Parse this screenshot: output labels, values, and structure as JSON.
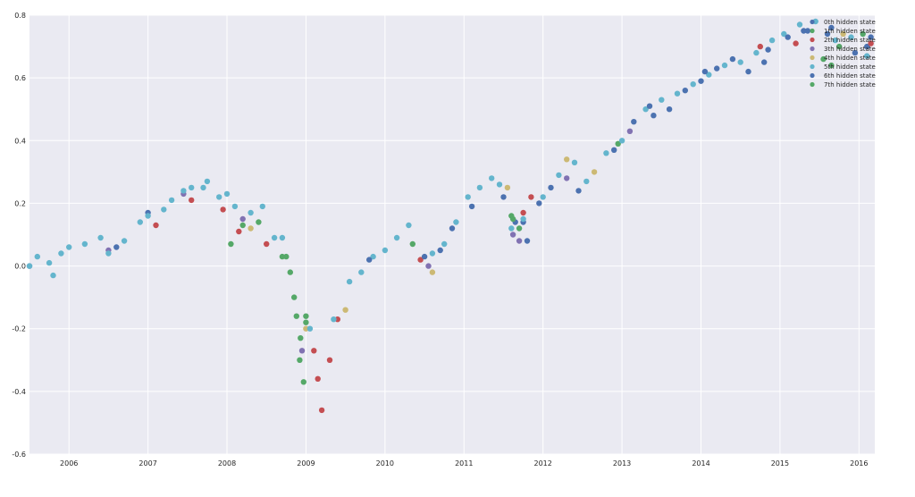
{
  "chart_data": {
    "type": "scatter",
    "title": "",
    "xlabel": "",
    "ylabel": "",
    "xlim": [
      2005.5,
      2016.2
    ],
    "ylim": [
      -0.6,
      0.8
    ],
    "grid": true,
    "legend_position": "top-right",
    "background": "#EAEAF2",
    "x_ticks": [
      2006,
      2007,
      2008,
      2009,
      2010,
      2011,
      2012,
      2013,
      2014,
      2015,
      2016
    ],
    "x_tick_labels": [
      "2006",
      "2007",
      "2008",
      "2009",
      "2010",
      "2011",
      "2012",
      "2013",
      "2014",
      "2015",
      "2016"
    ],
    "y_ticks": [
      -0.6,
      -0.4,
      -0.2,
      0.0,
      0.2,
      0.4,
      0.6,
      0.8
    ],
    "y_tick_labels": [
      "-0.6",
      "-0.4",
      "-0.2",
      "0.0",
      "0.2",
      "0.4",
      "0.6",
      "0.8"
    ],
    "series": [
      {
        "name": "0th hidden state",
        "color": "#4C72B0",
        "points": [
          [
            2005.5,
            0.0
          ],
          [
            2006.6,
            0.06
          ],
          [
            2007.0,
            0.17
          ],
          [
            2010.7,
            0.05
          ],
          [
            2011.75,
            0.14
          ],
          [
            2011.8,
            0.08
          ],
          [
            2013.4,
            0.48
          ],
          [
            2014.0,
            0.59
          ],
          [
            2014.8,
            0.65
          ],
          [
            2015.3,
            0.75
          ],
          [
            2015.65,
            0.76
          ],
          [
            2016.1,
            0.7
          ]
        ]
      },
      {
        "name": "1th hidden state",
        "color": "#55A868",
        "points": [
          [
            2008.05,
            0.07
          ],
          [
            2008.7,
            0.03
          ],
          [
            2008.85,
            -0.1
          ],
          [
            2008.92,
            -0.3
          ],
          [
            2008.97,
            -0.37
          ],
          [
            2009.0,
            -0.18
          ],
          [
            2010.35,
            0.07
          ],
          [
            2011.6,
            0.16
          ],
          [
            2012.95,
            0.39
          ],
          [
            2015.55,
            0.66
          ],
          [
            2015.75,
            0.7
          ],
          [
            2016.05,
            0.74
          ]
        ]
      },
      {
        "name": "2th hidden state",
        "color": "#C44E52",
        "points": [
          [
            2007.1,
            0.13
          ],
          [
            2007.55,
            0.21
          ],
          [
            2007.95,
            0.18
          ],
          [
            2008.15,
            0.11
          ],
          [
            2008.5,
            0.07
          ],
          [
            2009.1,
            -0.27
          ],
          [
            2009.15,
            -0.36
          ],
          [
            2009.2,
            -0.46
          ],
          [
            2009.3,
            -0.3
          ],
          [
            2009.4,
            -0.17
          ],
          [
            2010.45,
            0.02
          ],
          [
            2011.75,
            0.17
          ],
          [
            2011.85,
            0.22
          ],
          [
            2014.75,
            0.7
          ],
          [
            2015.2,
            0.71
          ],
          [
            2016.15,
            0.71
          ]
        ]
      },
      {
        "name": "3th hidden state",
        "color": "#8172B2",
        "points": [
          [
            2006.5,
            0.05
          ],
          [
            2007.45,
            0.23
          ],
          [
            2008.2,
            0.15
          ],
          [
            2008.95,
            -0.27
          ],
          [
            2010.55,
            0.0
          ],
          [
            2011.62,
            0.1
          ],
          [
            2011.7,
            0.08
          ],
          [
            2012.3,
            0.28
          ],
          [
            2013.1,
            0.43
          ]
        ]
      },
      {
        "name": "4th hidden state",
        "color": "#CCB974",
        "points": [
          [
            2008.3,
            0.12
          ],
          [
            2009.0,
            -0.2
          ],
          [
            2009.5,
            -0.14
          ],
          [
            2010.6,
            -0.02
          ],
          [
            2011.55,
            0.25
          ],
          [
            2012.3,
            0.34
          ],
          [
            2012.65,
            0.3
          ],
          [
            2015.8,
            0.74
          ]
        ]
      },
      {
        "name": "5th hidden state",
        "color": "#64B5CD",
        "points": [
          [
            2005.5,
            0.0
          ],
          [
            2005.6,
            0.03
          ],
          [
            2005.75,
            0.01
          ],
          [
            2005.8,
            -0.03
          ],
          [
            2005.9,
            0.04
          ],
          [
            2006.0,
            0.06
          ],
          [
            2006.2,
            0.07
          ],
          [
            2006.4,
            0.09
          ],
          [
            2006.5,
            0.04
          ],
          [
            2006.7,
            0.08
          ],
          [
            2006.9,
            0.14
          ],
          [
            2007.0,
            0.16
          ],
          [
            2007.2,
            0.18
          ],
          [
            2007.3,
            0.21
          ],
          [
            2007.45,
            0.24
          ],
          [
            2007.55,
            0.25
          ],
          [
            2007.7,
            0.25
          ],
          [
            2007.75,
            0.27
          ],
          [
            2007.9,
            0.22
          ],
          [
            2008.0,
            0.23
          ],
          [
            2008.1,
            0.19
          ],
          [
            2008.3,
            0.17
          ],
          [
            2008.45,
            0.19
          ],
          [
            2008.6,
            0.09
          ],
          [
            2008.7,
            0.09
          ],
          [
            2009.05,
            -0.2
          ],
          [
            2009.35,
            -0.17
          ],
          [
            2009.55,
            -0.05
          ],
          [
            2009.7,
            -0.02
          ],
          [
            2009.85,
            0.03
          ],
          [
            2010.0,
            0.05
          ],
          [
            2010.15,
            0.09
          ],
          [
            2010.3,
            0.13
          ],
          [
            2010.6,
            0.04
          ],
          [
            2010.75,
            0.07
          ],
          [
            2010.9,
            0.14
          ],
          [
            2011.05,
            0.22
          ],
          [
            2011.2,
            0.25
          ],
          [
            2011.35,
            0.28
          ],
          [
            2011.45,
            0.26
          ],
          [
            2011.6,
            0.12
          ],
          [
            2011.75,
            0.15
          ],
          [
            2012.0,
            0.22
          ],
          [
            2012.2,
            0.29
          ],
          [
            2012.4,
            0.33
          ],
          [
            2012.55,
            0.27
          ],
          [
            2012.8,
            0.36
          ],
          [
            2013.0,
            0.4
          ],
          [
            2013.3,
            0.5
          ],
          [
            2013.5,
            0.53
          ],
          [
            2013.7,
            0.55
          ],
          [
            2013.9,
            0.58
          ],
          [
            2014.1,
            0.61
          ],
          [
            2014.3,
            0.64
          ],
          [
            2014.5,
            0.65
          ],
          [
            2014.7,
            0.68
          ],
          [
            2014.9,
            0.72
          ],
          [
            2015.05,
            0.74
          ],
          [
            2015.25,
            0.77
          ],
          [
            2015.45,
            0.78
          ],
          [
            2015.7,
            0.72
          ],
          [
            2015.9,
            0.73
          ],
          [
            2016.1,
            0.67
          ]
        ]
      },
      {
        "name": "6th hidden state",
        "color": "#4C72B0",
        "points": [
          [
            2009.8,
            0.02
          ],
          [
            2010.5,
            0.03
          ],
          [
            2010.85,
            0.12
          ],
          [
            2011.1,
            0.19
          ],
          [
            2011.5,
            0.22
          ],
          [
            2011.65,
            0.14
          ],
          [
            2011.95,
            0.2
          ],
          [
            2012.1,
            0.25
          ],
          [
            2012.45,
            0.24
          ],
          [
            2012.9,
            0.37
          ],
          [
            2013.15,
            0.46
          ],
          [
            2013.35,
            0.51
          ],
          [
            2013.6,
            0.5
          ],
          [
            2013.8,
            0.56
          ],
          [
            2014.05,
            0.62
          ],
          [
            2014.2,
            0.63
          ],
          [
            2014.4,
            0.66
          ],
          [
            2014.6,
            0.62
          ],
          [
            2014.85,
            0.69
          ],
          [
            2015.1,
            0.73
          ],
          [
            2015.35,
            0.75
          ],
          [
            2015.6,
            0.74
          ],
          [
            2015.95,
            0.68
          ],
          [
            2016.15,
            0.73
          ]
        ]
      },
      {
        "name": "7th hidden state",
        "color": "#55A868",
        "points": [
          [
            2008.2,
            0.13
          ],
          [
            2008.4,
            0.14
          ],
          [
            2008.75,
            0.03
          ],
          [
            2008.8,
            -0.02
          ],
          [
            2008.88,
            -0.16
          ],
          [
            2008.93,
            -0.23
          ],
          [
            2009.0,
            -0.16
          ],
          [
            2011.62,
            0.15
          ],
          [
            2011.7,
            0.12
          ],
          [
            2015.65,
            0.64
          ]
        ]
      }
    ]
  }
}
